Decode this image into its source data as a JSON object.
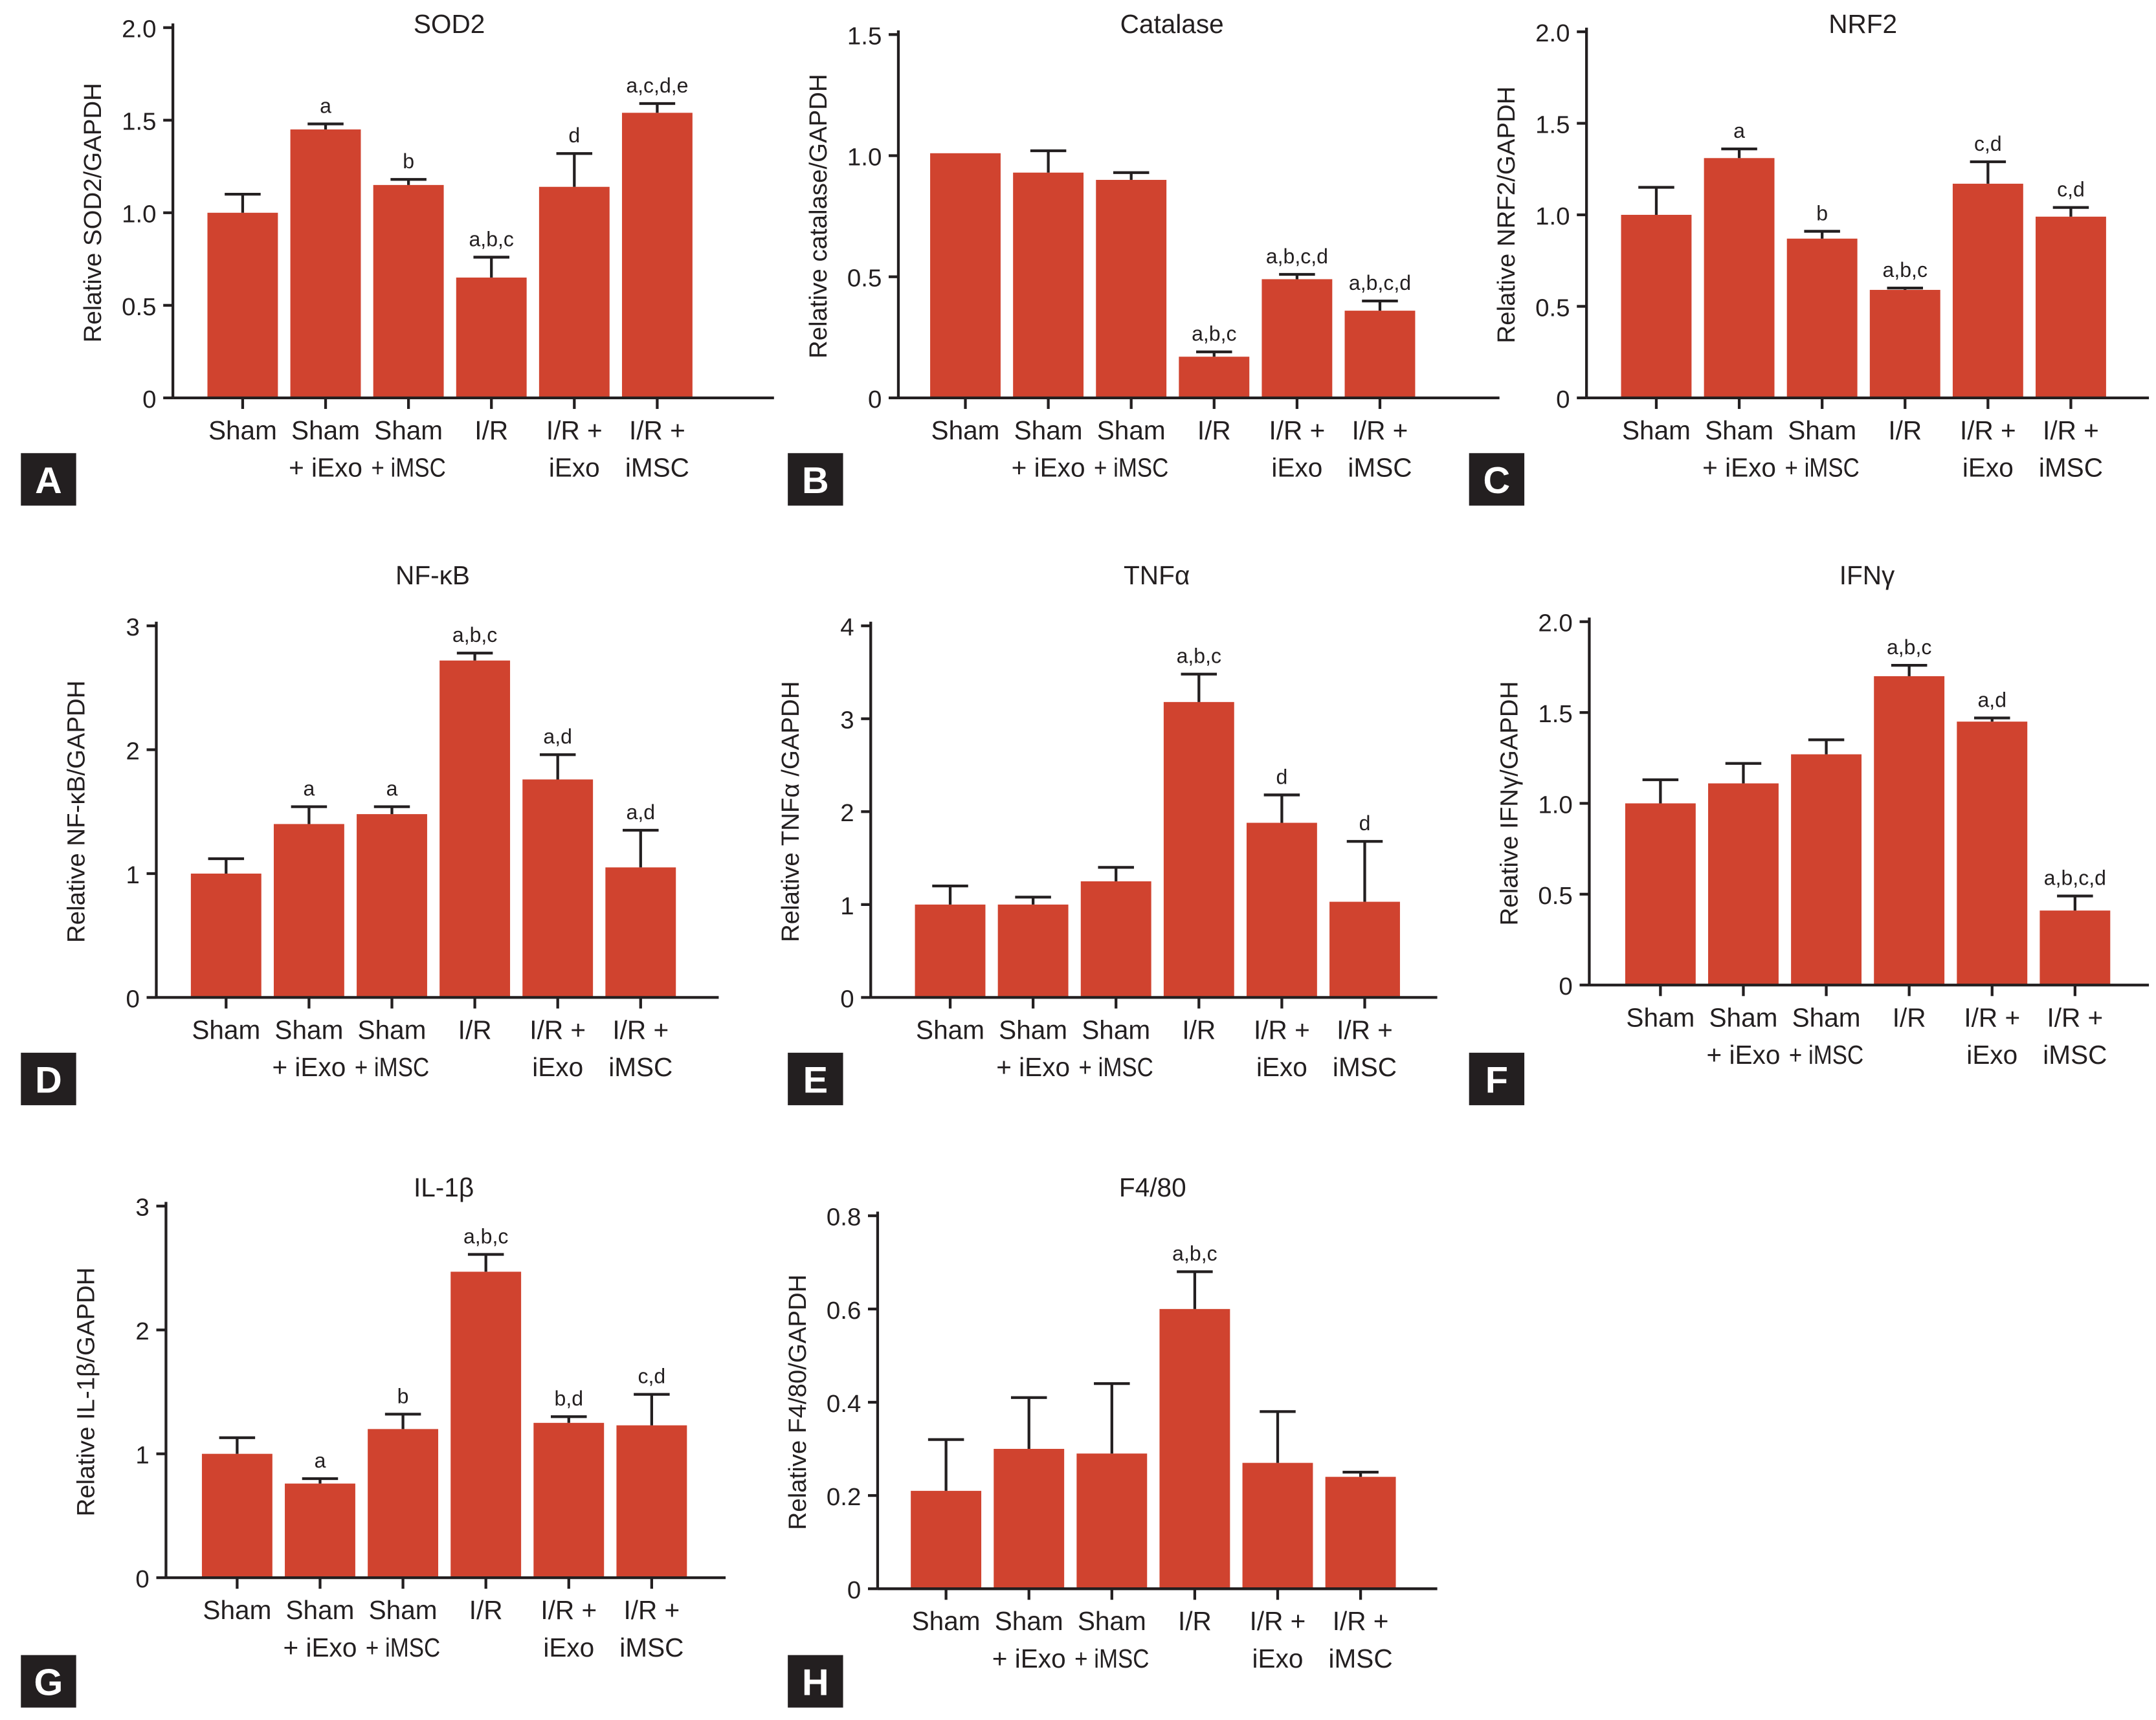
{
  "bar_color": "#d0432f",
  "panel_label_bg": "#231f20",
  "chart_data": [
    {
      "panel": "A",
      "type": "bar",
      "title": "SOD2",
      "ylabel": "Relative SOD2/GAPDH",
      "ylim": [
        0,
        2.0
      ],
      "yticks": [
        "0",
        "0.5",
        "1.0",
        "1.5",
        "2.0"
      ],
      "categories": [
        [
          "Sham"
        ],
        [
          "Sham",
          "+ iExo"
        ],
        [
          "Sham",
          "+ iMSC"
        ],
        [
          "I/R"
        ],
        [
          "I/R +",
          "iExo"
        ],
        [
          "I/R +",
          "iMSC"
        ]
      ],
      "values": [
        1.0,
        1.45,
        1.15,
        0.65,
        1.14,
        1.54
      ],
      "errors": [
        0.1,
        0.03,
        0.03,
        0.11,
        0.18,
        0.05
      ],
      "annotations": [
        "",
        "a",
        "b",
        "a,b,c",
        "d",
        "a,c,d,e"
      ]
    },
    {
      "panel": "B",
      "type": "bar",
      "title": "Catalase",
      "ylabel": "Relative catalase/GAPDH",
      "ylim": [
        0,
        1.5
      ],
      "yticks": [
        "0",
        "0.5",
        "1.0",
        "1.5"
      ],
      "categories": [
        [
          "Sham"
        ],
        [
          "Sham",
          "+ iExo"
        ],
        [
          "Sham",
          "+ iMSC"
        ],
        [
          "I/R"
        ],
        [
          "I/R +",
          "iExo"
        ],
        [
          "I/R +",
          "iMSC"
        ]
      ],
      "values": [
        1.01,
        0.93,
        0.9,
        0.17,
        0.49,
        0.36
      ],
      "errors": [
        0.0,
        0.09,
        0.03,
        0.02,
        0.02,
        0.04
      ],
      "annotations": [
        "",
        "",
        "",
        "a,b,c",
        "a,b,c,d",
        "a,b,c,d"
      ]
    },
    {
      "panel": "C",
      "type": "bar",
      "title": "NRF2",
      "ylabel": "Relative NRF2/GAPDH",
      "ylim": [
        0,
        2.0
      ],
      "yticks": [
        "0",
        "0.5",
        "1.0",
        "1.5",
        "2.0"
      ],
      "categories": [
        [
          "Sham"
        ],
        [
          "Sham",
          "+ iExo"
        ],
        [
          "Sham",
          "+ iMSC"
        ],
        [
          "I/R"
        ],
        [
          "I/R +",
          "iExo"
        ],
        [
          "I/R +",
          "iMSC"
        ]
      ],
      "values": [
        1.0,
        1.31,
        0.87,
        0.59,
        1.17,
        0.99
      ],
      "errors": [
        0.15,
        0.05,
        0.04,
        0.01,
        0.12,
        0.05
      ],
      "annotations": [
        "",
        "a",
        "b",
        "a,b,c",
        "c,d",
        "c,d"
      ]
    },
    {
      "panel": "D",
      "type": "bar",
      "title": "NF-κB",
      "ylabel": "Relative NF-κB/GAPDH",
      "ylim": [
        0,
        3
      ],
      "yticks": [
        "0",
        "1",
        "2",
        "3"
      ],
      "categories": [
        [
          "Sham"
        ],
        [
          "Sham",
          "+ iExo"
        ],
        [
          "Sham",
          "+ iMSC"
        ],
        [
          "I/R"
        ],
        [
          "I/R +",
          "iExo"
        ],
        [
          "I/R +",
          "iMSC"
        ]
      ],
      "values": [
        1.0,
        1.4,
        1.48,
        2.72,
        1.76,
        1.05
      ],
      "errors": [
        0.12,
        0.14,
        0.06,
        0.06,
        0.2,
        0.3
      ],
      "annotations": [
        "",
        "a",
        "a",
        "a,b,c",
        "a,d",
        "a,d"
      ]
    },
    {
      "panel": "E",
      "type": "bar",
      "title": "TNFα",
      "ylabel": "Relative TNFα /GAPDH",
      "ylim": [
        0,
        4
      ],
      "yticks": [
        "0",
        "1",
        "2",
        "3",
        "4"
      ],
      "categories": [
        [
          "Sham"
        ],
        [
          "Sham",
          "+ iExo"
        ],
        [
          "Sham",
          "+ iMSC"
        ],
        [
          "I/R"
        ],
        [
          "I/R +",
          "iExo"
        ],
        [
          "I/R +",
          "iMSC"
        ]
      ],
      "values": [
        1.0,
        1.0,
        1.25,
        3.18,
        1.88,
        1.03
      ],
      "errors": [
        0.2,
        0.08,
        0.15,
        0.3,
        0.3,
        0.65
      ],
      "annotations": [
        "",
        "",
        "",
        "a,b,c",
        "d",
        "d"
      ]
    },
    {
      "panel": "F",
      "type": "bar",
      "title": "IFNγ",
      "ylabel": "Relative IFNγ/GAPDH",
      "ylim": [
        0,
        2.0
      ],
      "yticks": [
        "0",
        "0.5",
        "1.0",
        "1.5",
        "2.0"
      ],
      "categories": [
        [
          "Sham"
        ],
        [
          "Sham",
          "+ iExo"
        ],
        [
          "Sham",
          "+ iMSC"
        ],
        [
          "I/R"
        ],
        [
          "I/R +",
          "iExo"
        ],
        [
          "I/R +",
          "iMSC"
        ]
      ],
      "values": [
        1.0,
        1.11,
        1.27,
        1.7,
        1.45,
        0.41
      ],
      "errors": [
        0.13,
        0.11,
        0.08,
        0.06,
        0.02,
        0.08
      ],
      "annotations": [
        "",
        "",
        "",
        "a,b,c",
        "a,d",
        "a,b,c,d"
      ]
    },
    {
      "panel": "G",
      "type": "bar",
      "title": "IL-1β",
      "ylabel": "Relative IL-1β/GAPDH",
      "ylim": [
        0,
        3
      ],
      "yticks": [
        "0",
        "1",
        "2",
        "3"
      ],
      "categories": [
        [
          "Sham"
        ],
        [
          "Sham",
          "+ iExo"
        ],
        [
          "Sham",
          "+ iMSC"
        ],
        [
          "I/R"
        ],
        [
          "I/R +",
          "iExo"
        ],
        [
          "I/R +",
          "iMSC"
        ]
      ],
      "values": [
        1.0,
        0.76,
        1.2,
        2.47,
        1.25,
        1.23
      ],
      "errors": [
        0.13,
        0.04,
        0.12,
        0.14,
        0.05,
        0.25
      ],
      "annotations": [
        "",
        "a",
        "b",
        "a,b,c",
        "b,d",
        "c,d"
      ]
    },
    {
      "panel": "H",
      "type": "bar",
      "title": "F4/80",
      "ylabel": "Relative F4/80/GAPDH",
      "ylim": [
        0,
        0.8
      ],
      "yticks": [
        "0",
        "0.2",
        "0.4",
        "0.6",
        "0.8"
      ],
      "categories": [
        [
          "Sham"
        ],
        [
          "Sham",
          "+ iExo"
        ],
        [
          "Sham",
          "+ iMSC"
        ],
        [
          "I/R"
        ],
        [
          "I/R +",
          "iExo"
        ],
        [
          "I/R +",
          "iMSC"
        ]
      ],
      "values": [
        0.21,
        0.3,
        0.29,
        0.6,
        0.27,
        0.24
      ],
      "errors": [
        0.11,
        0.11,
        0.15,
        0.08,
        0.11,
        0.01
      ],
      "annotations": [
        "",
        "",
        "",
        "a,b,c",
        "",
        ""
      ]
    }
  ]
}
